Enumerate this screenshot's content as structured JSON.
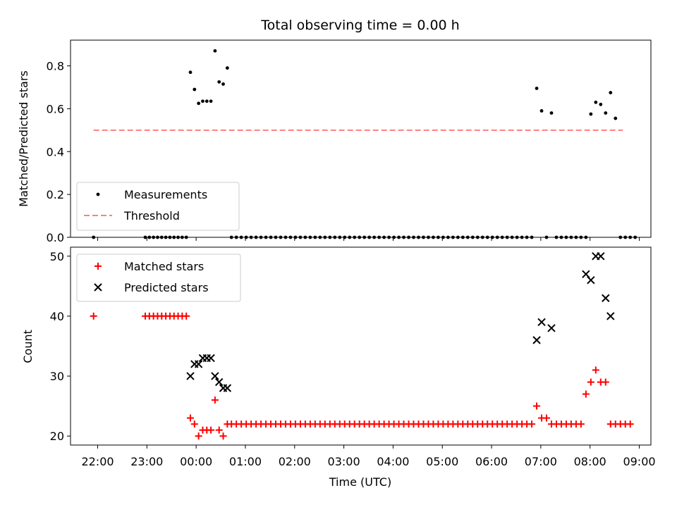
{
  "title": "Total observing time = 0.00 h",
  "colors": {
    "measurement": "#000000",
    "threshold": "#ff7f7f",
    "matched": "#ff0000",
    "predicted": "#000000"
  },
  "chart_data": [
    {
      "type": "scatter",
      "panel": "top",
      "ylabel": "Matched/Predicted stars",
      "xlabel": "",
      "ylim": [
        0,
        0.92
      ],
      "yticks": [
        0.0,
        0.2,
        0.4,
        0.6,
        0.8
      ],
      "ytick_labels": [
        "0.0",
        "0.2",
        "0.4",
        "0.6",
        "0.8"
      ],
      "legend": {
        "position": "lower-left",
        "entries": [
          "Measurements",
          "Threshold"
        ]
      },
      "series": [
        {
          "name": "Measurements",
          "marker": "dot",
          "points": [
            [
              "21:55",
              0
            ],
            [
              "22:58",
              0
            ],
            [
              "23:03",
              0
            ],
            [
              "23:08",
              0
            ],
            [
              "23:13",
              0
            ],
            [
              "23:18",
              0
            ],
            [
              "23:23",
              0
            ],
            [
              "23:28",
              0
            ],
            [
              "23:33",
              0
            ],
            [
              "23:38",
              0
            ],
            [
              "23:43",
              0
            ],
            [
              "23:48",
              0
            ],
            [
              "23:53",
              0.77
            ],
            [
              "23:58",
              0.69
            ],
            [
              "00:03",
              0.625
            ],
            [
              "00:08",
              0.635
            ],
            [
              "00:13",
              0.635
            ],
            [
              "00:18",
              0.635
            ],
            [
              "00:23",
              0.87
            ],
            [
              "00:28",
              0.725
            ],
            [
              "00:33",
              0.715
            ],
            [
              "00:38",
              0.79
            ],
            [
              "00:43",
              0
            ],
            [
              "00:49",
              0
            ],
            [
              "00:55",
              0
            ],
            [
              "01:01",
              0
            ],
            [
              "01:07",
              0
            ],
            [
              "01:13",
              0
            ],
            [
              "01:19",
              0
            ],
            [
              "01:25",
              0
            ],
            [
              "01:31",
              0
            ],
            [
              "01:37",
              0
            ],
            [
              "01:43",
              0
            ],
            [
              "01:49",
              0
            ],
            [
              "01:55",
              0
            ],
            [
              "02:01",
              0
            ],
            [
              "02:07",
              0
            ],
            [
              "02:13",
              0
            ],
            [
              "02:19",
              0
            ],
            [
              "02:25",
              0
            ],
            [
              "02:31",
              0
            ],
            [
              "02:37",
              0
            ],
            [
              "02:43",
              0
            ],
            [
              "02:49",
              0
            ],
            [
              "02:55",
              0
            ],
            [
              "03:01",
              0
            ],
            [
              "03:07",
              0
            ],
            [
              "03:13",
              0
            ],
            [
              "03:19",
              0
            ],
            [
              "03:25",
              0
            ],
            [
              "03:31",
              0
            ],
            [
              "03:37",
              0
            ],
            [
              "03:43",
              0
            ],
            [
              "03:49",
              0
            ],
            [
              "03:55",
              0
            ],
            [
              "04:01",
              0
            ],
            [
              "04:07",
              0
            ],
            [
              "04:13",
              0
            ],
            [
              "04:19",
              0
            ],
            [
              "04:25",
              0
            ],
            [
              "04:31",
              0
            ],
            [
              "04:37",
              0
            ],
            [
              "04:43",
              0
            ],
            [
              "04:49",
              0
            ],
            [
              "04:55",
              0
            ],
            [
              "05:01",
              0
            ],
            [
              "05:07",
              0
            ],
            [
              "05:13",
              0
            ],
            [
              "05:19",
              0
            ],
            [
              "05:25",
              0
            ],
            [
              "05:31",
              0
            ],
            [
              "05:37",
              0
            ],
            [
              "05:43",
              0
            ],
            [
              "05:49",
              0
            ],
            [
              "05:55",
              0
            ],
            [
              "06:01",
              0
            ],
            [
              "06:07",
              0
            ],
            [
              "06:13",
              0
            ],
            [
              "06:19",
              0
            ],
            [
              "06:25",
              0
            ],
            [
              "06:31",
              0
            ],
            [
              "06:37",
              0
            ],
            [
              "06:43",
              0
            ],
            [
              "06:49",
              0
            ],
            [
              "06:55",
              0.695
            ],
            [
              "07:01",
              0.59
            ],
            [
              "07:07",
              0
            ],
            [
              "07:13",
              0.58
            ],
            [
              "07:19",
              0
            ],
            [
              "07:25",
              0
            ],
            [
              "07:31",
              0
            ],
            [
              "07:37",
              0
            ],
            [
              "07:43",
              0
            ],
            [
              "07:49",
              0
            ],
            [
              "07:55",
              0
            ],
            [
              "08:01",
              0.575
            ],
            [
              "08:07",
              0.63
            ],
            [
              "08:13",
              0.62
            ],
            [
              "08:19",
              0.58
            ],
            [
              "08:25",
              0.675
            ],
            [
              "08:31",
              0.555
            ],
            [
              "08:37",
              0
            ],
            [
              "08:43",
              0
            ],
            [
              "08:49",
              0
            ],
            [
              "08:55",
              0
            ]
          ]
        },
        {
          "name": "Threshold",
          "line": "dashed",
          "points": [
            [
              "21:55",
              0.5
            ],
            [
              "08:40",
              0.5
            ]
          ]
        }
      ]
    },
    {
      "type": "scatter",
      "panel": "bottom",
      "ylabel": "Count",
      "xlabel": "Time (UTC)",
      "ylim": [
        18.5,
        51.5
      ],
      "yticks": [
        20,
        30,
        40,
        50
      ],
      "ytick_labels": [
        "20",
        "30",
        "40",
        "50"
      ],
      "x_tick_labels": [
        "22:00",
        "23:00",
        "00:00",
        "01:00",
        "02:00",
        "03:00",
        "04:00",
        "05:00",
        "06:00",
        "07:00",
        "08:00",
        "09:00"
      ],
      "legend": {
        "position": "upper-left",
        "entries": [
          "Matched stars",
          "Predicted stars"
        ]
      },
      "series": [
        {
          "name": "Matched stars",
          "marker": "plus",
          "points": [
            [
              "21:55",
              40
            ],
            [
              "22:58",
              40
            ],
            [
              "23:03",
              40
            ],
            [
              "23:08",
              40
            ],
            [
              "23:13",
              40
            ],
            [
              "23:18",
              40
            ],
            [
              "23:23",
              40
            ],
            [
              "23:28",
              40
            ],
            [
              "23:33",
              40
            ],
            [
              "23:38",
              40
            ],
            [
              "23:43",
              40
            ],
            [
              "23:48",
              40
            ],
            [
              "23:53",
              23
            ],
            [
              "23:58",
              22
            ],
            [
              "00:03",
              20
            ],
            [
              "00:08",
              21
            ],
            [
              "00:13",
              21
            ],
            [
              "00:18",
              21
            ],
            [
              "00:23",
              26
            ],
            [
              "00:28",
              21
            ],
            [
              "00:33",
              20
            ],
            [
              "00:38",
              22
            ],
            [
              "00:43",
              22
            ],
            [
              "00:49",
              22
            ],
            [
              "00:55",
              22
            ],
            [
              "01:01",
              22
            ],
            [
              "01:07",
              22
            ],
            [
              "01:13",
              22
            ],
            [
              "01:19",
              22
            ],
            [
              "01:25",
              22
            ],
            [
              "01:31",
              22
            ],
            [
              "01:37",
              22
            ],
            [
              "01:43",
              22
            ],
            [
              "01:49",
              22
            ],
            [
              "01:55",
              22
            ],
            [
              "02:01",
              22
            ],
            [
              "02:07",
              22
            ],
            [
              "02:13",
              22
            ],
            [
              "02:19",
              22
            ],
            [
              "02:25",
              22
            ],
            [
              "02:31",
              22
            ],
            [
              "02:37",
              22
            ],
            [
              "02:43",
              22
            ],
            [
              "02:49",
              22
            ],
            [
              "02:55",
              22
            ],
            [
              "03:01",
              22
            ],
            [
              "03:07",
              22
            ],
            [
              "03:13",
              22
            ],
            [
              "03:19",
              22
            ],
            [
              "03:25",
              22
            ],
            [
              "03:31",
              22
            ],
            [
              "03:37",
              22
            ],
            [
              "03:43",
              22
            ],
            [
              "03:49",
              22
            ],
            [
              "03:55",
              22
            ],
            [
              "04:01",
              22
            ],
            [
              "04:07",
              22
            ],
            [
              "04:13",
              22
            ],
            [
              "04:19",
              22
            ],
            [
              "04:25",
              22
            ],
            [
              "04:31",
              22
            ],
            [
              "04:37",
              22
            ],
            [
              "04:43",
              22
            ],
            [
              "04:49",
              22
            ],
            [
              "04:55",
              22
            ],
            [
              "05:01",
              22
            ],
            [
              "05:07",
              22
            ],
            [
              "05:13",
              22
            ],
            [
              "05:19",
              22
            ],
            [
              "05:25",
              22
            ],
            [
              "05:31",
              22
            ],
            [
              "05:37",
              22
            ],
            [
              "05:43",
              22
            ],
            [
              "05:49",
              22
            ],
            [
              "05:55",
              22
            ],
            [
              "06:01",
              22
            ],
            [
              "06:07",
              22
            ],
            [
              "06:13",
              22
            ],
            [
              "06:19",
              22
            ],
            [
              "06:25",
              22
            ],
            [
              "06:31",
              22
            ],
            [
              "06:37",
              22
            ],
            [
              "06:43",
              22
            ],
            [
              "06:49",
              22
            ],
            [
              "06:55",
              25
            ],
            [
              "07:01",
              23
            ],
            [
              "07:07",
              23
            ],
            [
              "07:13",
              22
            ],
            [
              "07:19",
              22
            ],
            [
              "07:25",
              22
            ],
            [
              "07:31",
              22
            ],
            [
              "07:37",
              22
            ],
            [
              "07:43",
              22
            ],
            [
              "07:49",
              22
            ],
            [
              "07:55",
              27
            ],
            [
              "08:01",
              29
            ],
            [
              "08:07",
              31
            ],
            [
              "08:13",
              29
            ],
            [
              "08:19",
              29
            ],
            [
              "08:25",
              22
            ],
            [
              "08:31",
              22
            ],
            [
              "08:37",
              22
            ],
            [
              "08:43",
              22
            ],
            [
              "08:49",
              22
            ]
          ]
        },
        {
          "name": "Predicted stars",
          "marker": "x",
          "points": [
            [
              "23:53",
              30
            ],
            [
              "23:58",
              32
            ],
            [
              "00:03",
              32
            ],
            [
              "00:08",
              33
            ],
            [
              "00:13",
              33
            ],
            [
              "00:18",
              33
            ],
            [
              "00:23",
              30
            ],
            [
              "00:28",
              29
            ],
            [
              "00:33",
              28
            ],
            [
              "00:38",
              28
            ],
            [
              "06:55",
              36
            ],
            [
              "07:01",
              39
            ],
            [
              "07:13",
              38
            ],
            [
              "07:55",
              47
            ],
            [
              "08:01",
              46
            ],
            [
              "08:07",
              50
            ],
            [
              "08:13",
              50
            ],
            [
              "08:19",
              43
            ],
            [
              "08:25",
              40
            ]
          ]
        }
      ]
    }
  ]
}
